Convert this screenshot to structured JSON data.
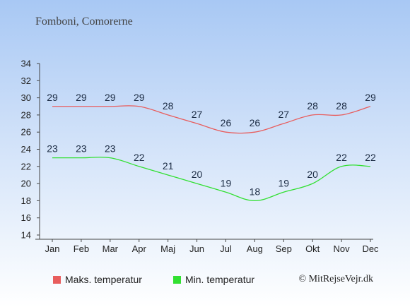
{
  "chart_data": {
    "type": "line",
    "title": "Fomboni, Comorerne",
    "categories": [
      "Jan",
      "Feb",
      "Mar",
      "Apr",
      "Maj",
      "Jun",
      "Jul",
      "Aug",
      "Sep",
      "Okt",
      "Nov",
      "Dec"
    ],
    "series": [
      {
        "name": "Maks. temperatur",
        "values": [
          29,
          29,
          29,
          29,
          28,
          27,
          26,
          26,
          27,
          28,
          28,
          29
        ],
        "color": "#e85d5d"
      },
      {
        "name": "Min. temperatur",
        "values": [
          23,
          23,
          23,
          22,
          21,
          20,
          19,
          18,
          19,
          20,
          22,
          22
        ],
        "color": "#32e032"
      }
    ],
    "ylim": [
      14,
      34
    ],
    "yticks": [
      14,
      16,
      18,
      20,
      22,
      24,
      26,
      28,
      30,
      32,
      34
    ],
    "grid": false,
    "legend_position": "bottom-left"
  },
  "legend": {
    "max_label": "Maks. temperatur",
    "min_label": "Min. temperatur"
  },
  "copyright": "© MitRejseVejr.dk"
}
